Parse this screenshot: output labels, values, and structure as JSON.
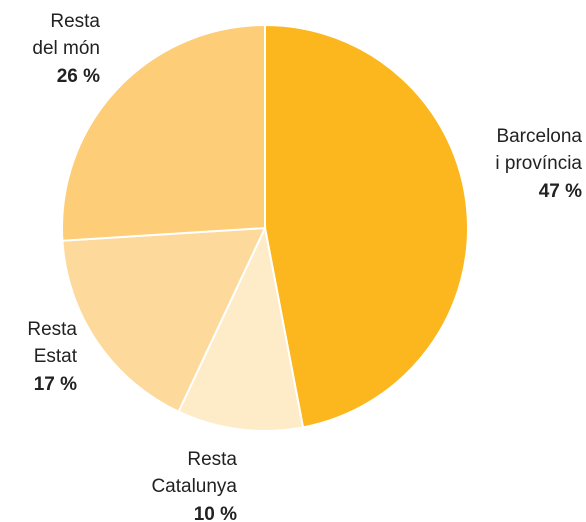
{
  "chart_data": {
    "type": "pie",
    "categories": [
      [
        "Barcelona",
        "i província"
      ],
      [
        "Resta",
        "Catalunya"
      ],
      [
        "Resta",
        "Estat"
      ],
      [
        "Resta",
        "del món"
      ]
    ],
    "values": [
      47,
      10,
      17,
      26
    ],
    "value_labels": [
      "47 %",
      "10 %",
      "17 %",
      "26 %"
    ],
    "colors": [
      "#fbb71d",
      "#feebc8",
      "#fdd99b",
      "#fdcd78"
    ]
  }
}
